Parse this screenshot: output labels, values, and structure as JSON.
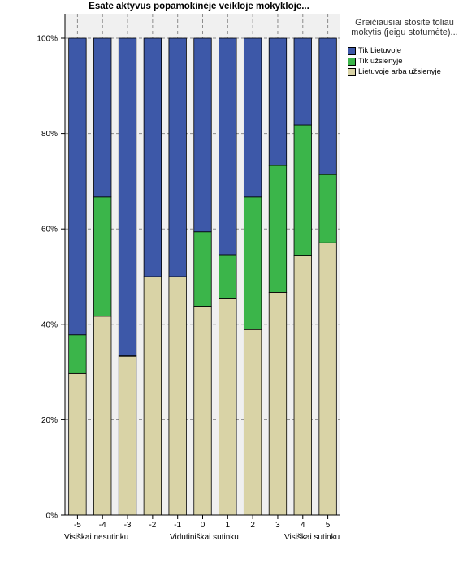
{
  "colors": {
    "Tik Lietuvoje": "#3d58a8",
    "Tik užsienyje": "#3bb54a",
    "Lietuvoje arba užsienyje": "#d9d3a6",
    "plot_background": "#f0f0f0",
    "grid": "#8c8c8c"
  },
  "x_group_labels": {
    "left": "Visiškai nesutinku",
    "middle": "Vidutiniškai sutinku",
    "right": "Visiškai sutinku"
  },
  "chart_data": {
    "type": "bar",
    "stacked": true,
    "title": "Esate aktyvus popamokinėje veikloje mokykloje...",
    "categories": [
      "-5",
      "-4",
      "-3",
      "-2",
      "-1",
      "0",
      "1",
      "2",
      "3",
      "4",
      "5"
    ],
    "series": [
      {
        "name": "Lietuvoje arba užsienyje",
        "values": [
          29.7,
          41.7,
          33.3,
          50.0,
          50.0,
          43.8,
          45.5,
          38.9,
          46.7,
          54.5,
          57.1
        ]
      },
      {
        "name": "Tik užsienyje",
        "values": [
          8.1,
          25.0,
          0.1,
          0.0,
          0.0,
          15.6,
          9.1,
          27.8,
          26.6,
          27.3,
          14.3
        ]
      },
      {
        "name": "Tik Lietuvoje",
        "values": [
          62.2,
          33.3,
          66.6,
          50.0,
          50.0,
          40.6,
          45.4,
          33.3,
          26.7,
          18.2,
          28.6
        ]
      }
    ],
    "legend": {
      "title": "Greičiausiai stosite toliau mokytis (jeigu stotumėte)...",
      "items": [
        "Tik Lietuvoje",
        "Tik užsienyje",
        "Lietuvoje arba užsienyje"
      ],
      "placement": "top-right"
    },
    "ylim": [
      0,
      100
    ],
    "y_ticks": [
      "0%",
      "20%",
      "40%",
      "60%",
      "80%",
      "100%"
    ],
    "grid": true
  }
}
